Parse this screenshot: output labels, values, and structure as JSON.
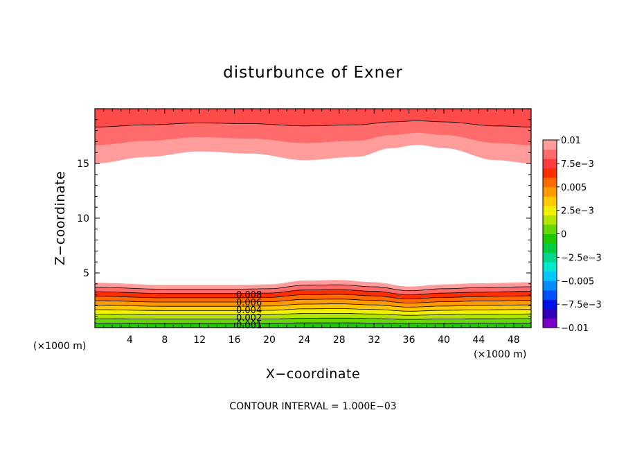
{
  "chart_data": {
    "type": "contour",
    "title": "disturbunce of Exner",
    "xlabel": "X−coordinate",
    "ylabel": "Z−coordinate",
    "x_unit": "(×1000 m)",
    "y_unit": "(×1000 m)",
    "xlim": [
      0,
      50
    ],
    "ylim": [
      0,
      20
    ],
    "x_ticks": [
      4,
      8,
      12,
      16,
      20,
      24,
      28,
      32,
      36,
      40,
      44,
      48
    ],
    "y_ticks": [
      5,
      10,
      15
    ],
    "contour_interval_note": "CONTOUR INTERVAL = 1.000E−03",
    "contour_labels": [
      "0.008",
      "0.006",
      "0.004",
      "0.002",
      "0.001"
    ],
    "colorbar": {
      "labels": [
        "0.01",
        "7.5e−3",
        "0.005",
        "2.5e−3",
        "0",
        "−2.5e−3",
        "−0.005",
        "−7.5e−3",
        "−0.01"
      ],
      "min": -0.01,
      "max": 0.01,
      "colors": [
        "#7a00c8",
        "#2e00b8",
        "#0010e8",
        "#0050ff",
        "#008cff",
        "#00c8ff",
        "#00e8d0",
        "#00d890",
        "#00cc40",
        "#20c800",
        "#66d800",
        "#b4e400",
        "#f0f000",
        "#ffc800",
        "#ff9a00",
        "#ff6a00",
        "#ff2e00",
        "#ff3c3c",
        "#ff6a6a",
        "#ff9c9c"
      ]
    },
    "bottom_band": {
      "z_top_profile": {
        "x": [
          0,
          8,
          16,
          20,
          24,
          28,
          32,
          36,
          40,
          44,
          50
        ],
        "z": [
          4.1,
          3.9,
          3.9,
          3.95,
          4.3,
          4.35,
          4.15,
          3.75,
          3.95,
          4.05,
          4.15
        ]
      },
      "layers": [
        {
          "level": 0.009,
          "color": "#ff9c9c"
        },
        {
          "level": 0.008,
          "color": "#ff6a6a"
        },
        {
          "level": 0.007,
          "color": "#ff2e00"
        },
        {
          "level": 0.006,
          "color": "#ff6a00"
        },
        {
          "level": 0.005,
          "color": "#ff9a00"
        },
        {
          "level": 0.004,
          "color": "#ffc800"
        },
        {
          "level": 0.003,
          "color": "#f0f000"
        },
        {
          "level": 0.002,
          "color": "#b4e400"
        },
        {
          "level": 0.001,
          "color": "#66d800"
        },
        {
          "level": 0.0,
          "color": "#20c800"
        }
      ]
    },
    "top_band": {
      "z_bottom_profile": {
        "x": [
          0,
          6,
          12,
          18,
          24,
          30,
          34,
          37,
          40,
          46,
          50
        ],
        "z": [
          15.0,
          15.6,
          16.1,
          15.9,
          15.3,
          15.6,
          16.4,
          16.7,
          16.4,
          15.3,
          15.0
        ]
      },
      "layers": [
        {
          "level": 0.009,
          "color": "#ff9c9c"
        },
        {
          "level": 0.008,
          "color": "#ff6a6a"
        },
        {
          "level": 0.007,
          "color": "#ff4a4a"
        }
      ]
    }
  }
}
